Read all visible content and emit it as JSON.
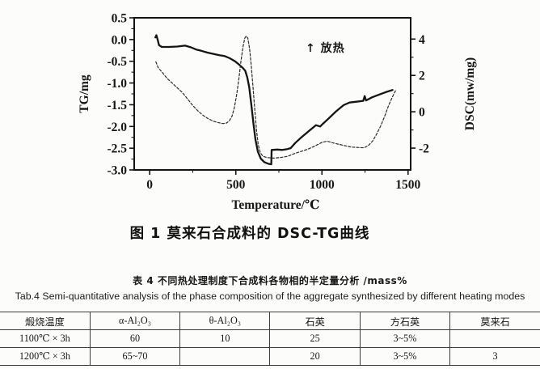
{
  "figure": {
    "caption": "图 1  莫来石合成料的 DSC-TG曲线",
    "annotation": "↑ 放热",
    "xlabel": "Temperature/℃",
    "ylabel_left": "TG/mg",
    "ylabel_right": "DSC(mw/mg)"
  },
  "chart_data": {
    "type": "line",
    "title": "图 1 莫来石合成料的 DSC-TG曲线",
    "xlabel": "Temperature/℃",
    "ylabel_left": "TG/mg",
    "ylabel_right": "DSC(mw/mg)",
    "grid": false,
    "xlim": [
      -90,
      1515
    ],
    "xticks": [
      0,
      500,
      1000,
      1500
    ],
    "xtick_labels": [
      "0",
      "500",
      "1000",
      "1500"
    ],
    "xminor": [
      250,
      750,
      1250
    ],
    "ylim_left": [
      -3.0,
      0.5
    ],
    "yticks_left": [
      0.5,
      0.0,
      -0.5,
      -1.0,
      -1.5,
      -2.0,
      -2.5,
      -3.0
    ],
    "ytick_labels_left": [
      "0.5",
      "0.0",
      "-0.5",
      "-1.0",
      "-1.5",
      "-2.0",
      "-2.5",
      "-3.0"
    ],
    "ylim_right": [
      -3.2,
      5.17
    ],
    "yticks_right": [
      4,
      2,
      0,
      -2
    ],
    "ytick_labels_right": [
      "4",
      "2",
      "0",
      "-2"
    ],
    "annotation": {
      "text": "↑ 放热",
      "x": 905,
      "y_left": -0.28
    },
    "colors": {
      "tg": "#141414",
      "dsc": "#2b2b2b",
      "axis": "#141414"
    },
    "series": [
      {
        "name": "TG",
        "axis": "left",
        "style": "solid",
        "width": 2.3,
        "points": [
          [
            33,
            0.05
          ],
          [
            39,
            0.1
          ],
          [
            46,
            0.0
          ],
          [
            54,
            -0.13
          ],
          [
            70,
            -0.17
          ],
          [
            110,
            -0.17
          ],
          [
            160,
            -0.16
          ],
          [
            205,
            -0.14
          ],
          [
            240,
            -0.18
          ],
          [
            270,
            -0.23
          ],
          [
            300,
            -0.26
          ],
          [
            335,
            -0.3
          ],
          [
            370,
            -0.33
          ],
          [
            405,
            -0.36
          ],
          [
            435,
            -0.38
          ],
          [
            465,
            -0.43
          ],
          [
            495,
            -0.5
          ],
          [
            520,
            -0.58
          ],
          [
            540,
            -0.65
          ],
          [
            555,
            -0.72
          ],
          [
            567,
            -0.88
          ],
          [
            578,
            -1.1
          ],
          [
            590,
            -1.5
          ],
          [
            602,
            -1.93
          ],
          [
            614,
            -2.3
          ],
          [
            628,
            -2.58
          ],
          [
            645,
            -2.74
          ],
          [
            665,
            -2.82
          ],
          [
            690,
            -2.86
          ],
          [
            706,
            -2.87
          ],
          [
            708,
            -2.54
          ],
          [
            740,
            -2.53
          ],
          [
            770,
            -2.54
          ],
          [
            800,
            -2.52
          ],
          [
            818,
            -2.5
          ],
          [
            845,
            -2.38
          ],
          [
            875,
            -2.27
          ],
          [
            905,
            -2.17
          ],
          [
            935,
            -2.07
          ],
          [
            965,
            -1.97
          ],
          [
            990,
            -2.0
          ],
          [
            1005,
            -1.94
          ],
          [
            1035,
            -1.83
          ],
          [
            1080,
            -1.66
          ],
          [
            1125,
            -1.51
          ],
          [
            1160,
            -1.45
          ],
          [
            1200,
            -1.43
          ],
          [
            1240,
            -1.41
          ],
          [
            1248,
            -1.3
          ],
          [
            1256,
            -1.4
          ],
          [
            1290,
            -1.33
          ],
          [
            1330,
            -1.27
          ],
          [
            1370,
            -1.21
          ],
          [
            1410,
            -1.16
          ]
        ]
      },
      {
        "name": "DSC",
        "axis": "right",
        "style": "dashed",
        "width": 1.2,
        "points": [
          [
            36,
            2.75
          ],
          [
            50,
            2.42
          ],
          [
            70,
            2.2
          ],
          [
            100,
            1.85
          ],
          [
            130,
            1.58
          ],
          [
            160,
            1.32
          ],
          [
            190,
            1.05
          ],
          [
            220,
            0.7
          ],
          [
            250,
            0.35
          ],
          [
            280,
            0.05
          ],
          [
            310,
            -0.2
          ],
          [
            340,
            -0.38
          ],
          [
            370,
            -0.52
          ],
          [
            400,
            -0.6
          ],
          [
            425,
            -0.65
          ],
          [
            445,
            -0.62
          ],
          [
            462,
            -0.5
          ],
          [
            478,
            -0.25
          ],
          [
            492,
            0.25
          ],
          [
            505,
            0.95
          ],
          [
            518,
            1.85
          ],
          [
            530,
            2.8
          ],
          [
            542,
            3.6
          ],
          [
            552,
            4.05
          ],
          [
            560,
            4.17
          ],
          [
            570,
            4.05
          ],
          [
            580,
            3.45
          ],
          [
            590,
            2.5
          ],
          [
            600,
            1.35
          ],
          [
            610,
            0.1
          ],
          [
            620,
            -1.0
          ],
          [
            630,
            -1.8
          ],
          [
            642,
            -2.25
          ],
          [
            658,
            -2.45
          ],
          [
            680,
            -2.52
          ],
          [
            720,
            -2.55
          ],
          [
            760,
            -2.52
          ],
          [
            800,
            -2.45
          ],
          [
            840,
            -2.3
          ],
          [
            880,
            -2.18
          ],
          [
            920,
            -2.05
          ],
          [
            960,
            -1.88
          ],
          [
            1000,
            -1.68
          ],
          [
            1030,
            -1.62
          ],
          [
            1060,
            -1.7
          ],
          [
            1090,
            -1.77
          ],
          [
            1130,
            -1.86
          ],
          [
            1170,
            -1.94
          ],
          [
            1220,
            -1.97
          ],
          [
            1245,
            -1.98
          ],
          [
            1270,
            -1.85
          ],
          [
            1295,
            -1.6
          ],
          [
            1315,
            -1.27
          ],
          [
            1340,
            -0.8
          ],
          [
            1362,
            -0.3
          ],
          [
            1385,
            0.3
          ],
          [
            1408,
            0.8
          ],
          [
            1428,
            1.18
          ]
        ]
      }
    ]
  },
  "table": {
    "title": "表 4  不同热处理制度下合成料各物相的半定量分析 /mass%",
    "subtitle": "Tab.4 Semi-quantitative analysis of the phase composition of the aggregate synthesized by different heating modes",
    "headers": [
      "煅烧温度",
      "α-Al₂O₃",
      "θ-Al₂O₃",
      "石英",
      "方石英",
      "莫来石"
    ],
    "rows": [
      [
        "1100℃ × 3h",
        "60",
        "10",
        "25",
        "3~5%",
        ""
      ],
      [
        "1200℃ × 3h",
        "65~70",
        "",
        "20",
        "3~5%",
        "3"
      ]
    ]
  }
}
